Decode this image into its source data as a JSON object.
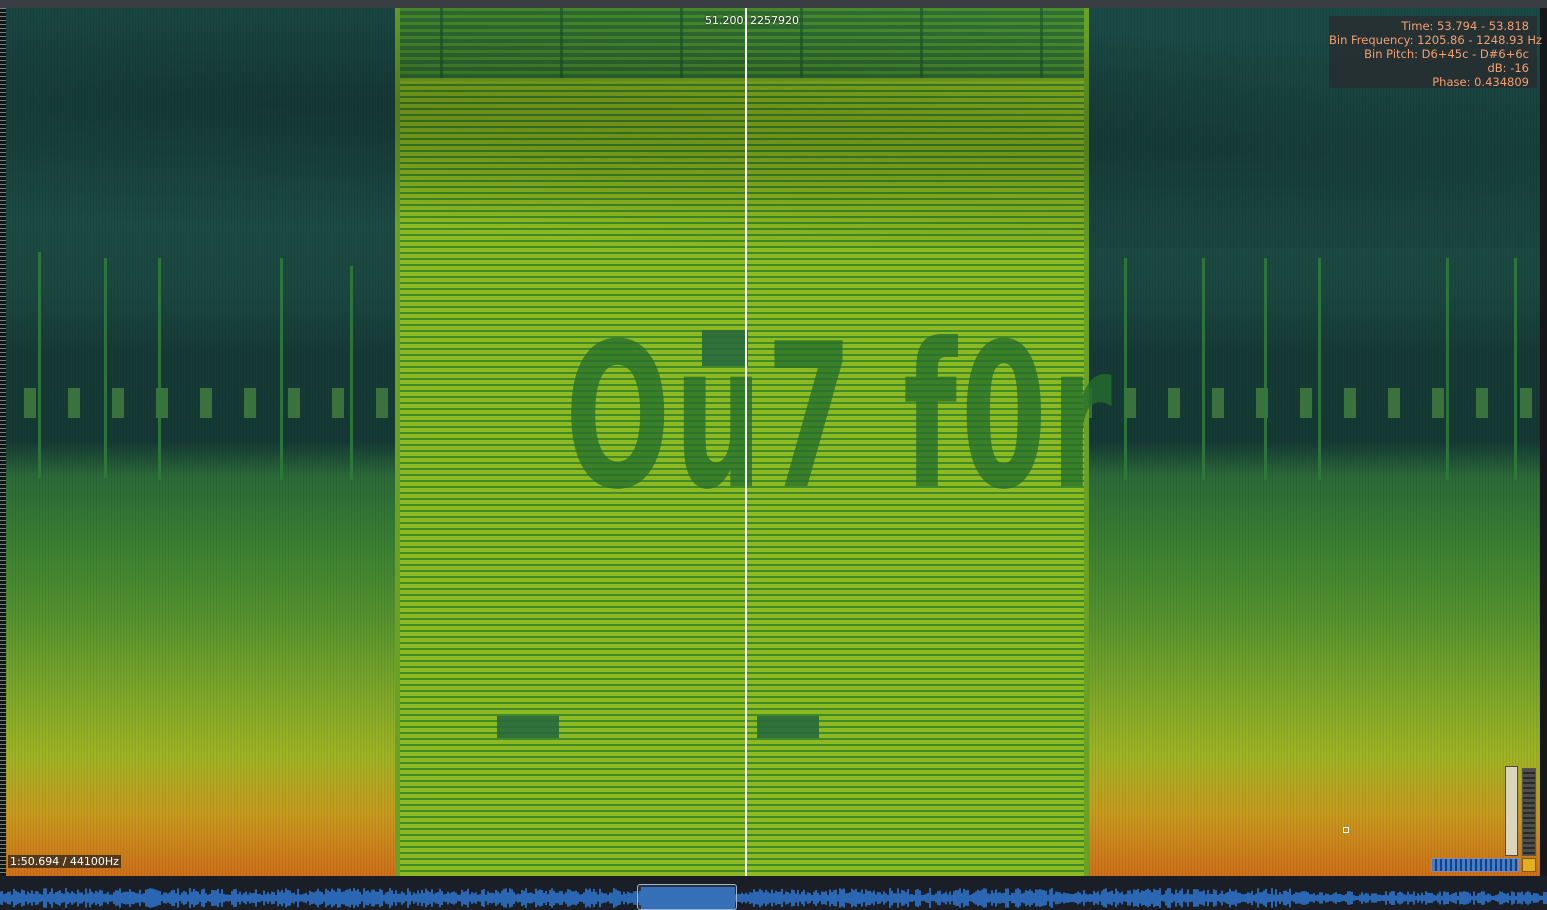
{
  "cursor": {
    "time": "51.200",
    "sample": "2257920"
  },
  "info": {
    "time": "Time: 53.794 - 53.818",
    "bin_frequency": "Bin Frequency: 1205.86 - 1248.93 Hz",
    "bin_pitch": "Bin Pitch: D6+45c - D#6+6c",
    "db": "dB: -16",
    "phase": "Phase: 0.434809"
  },
  "rate_label": "1:50.694 / 44100Hz",
  "hidden_message": "Ou7 f0r",
  "colors": {
    "cursor": "#f3f6f2",
    "info_text": "#f4a070",
    "waveform": "#2f7fe0"
  },
  "icons": {
    "zoom": "vertical-zoom-slider",
    "level": "level-meter",
    "scroll": "horizontal-scrollbar",
    "corner": "corner-toggle"
  }
}
